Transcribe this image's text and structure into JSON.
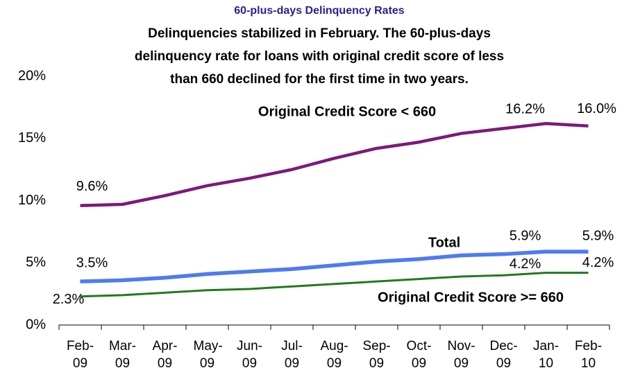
{
  "chart_data": {
    "type": "line",
    "title": "60-plus-days Delinquency Rates",
    "subtitle": [
      "Delinquencies stabilized in February. The 60-plus-days",
      "delinquency rate for loans with original credit score of less",
      "than 660 declined for the first time in two years."
    ],
    "categories": [
      "Feb-09",
      "Mar-09",
      "Apr-09",
      "May-09",
      "Jun-09",
      "Jul-09",
      "Aug-09",
      "Sep-09",
      "Oct-09",
      "Nov-09",
      "Dec-09",
      "Jan-10",
      "Feb-10"
    ],
    "series": [
      {
        "name": "Original Credit Score < 660",
        "color": "#7b1a7b",
        "values": [
          9.6,
          9.7,
          10.4,
          11.2,
          11.8,
          12.5,
          13.4,
          14.2,
          14.7,
          15.4,
          15.8,
          16.2,
          16.0
        ],
        "value_labels": [
          "9.6%",
          null,
          null,
          null,
          null,
          null,
          null,
          null,
          null,
          null,
          null,
          "16.2%",
          "16.0%"
        ]
      },
      {
        "name": "Total",
        "color": "#4f7bf0",
        "values": [
          3.5,
          3.6,
          3.8,
          4.1,
          4.3,
          4.5,
          4.8,
          5.1,
          5.3,
          5.6,
          5.7,
          5.9,
          5.9
        ],
        "value_labels": [
          "3.5%",
          null,
          null,
          null,
          null,
          null,
          null,
          null,
          null,
          null,
          null,
          "5.9%",
          "5.9%"
        ]
      },
      {
        "name": "Original Credit Score >= 660",
        "color": "#1f7a1f",
        "values": [
          2.3,
          2.4,
          2.6,
          2.8,
          2.9,
          3.1,
          3.3,
          3.5,
          3.7,
          3.9,
          4.0,
          4.2,
          4.2
        ],
        "value_labels": [
          "2.3%",
          null,
          null,
          null,
          null,
          null,
          null,
          null,
          null,
          null,
          null,
          "4.2%",
          "4.2%"
        ]
      }
    ],
    "ylim": [
      0,
      20
    ],
    "yticks": [
      {
        "value": 0,
        "label": "0%"
      },
      {
        "value": 5,
        "label": "5%"
      },
      {
        "value": 10,
        "label": "10%"
      },
      {
        "value": 15,
        "label": "15%"
      },
      {
        "value": 20,
        "label": "20%"
      }
    ],
    "grid": false
  }
}
